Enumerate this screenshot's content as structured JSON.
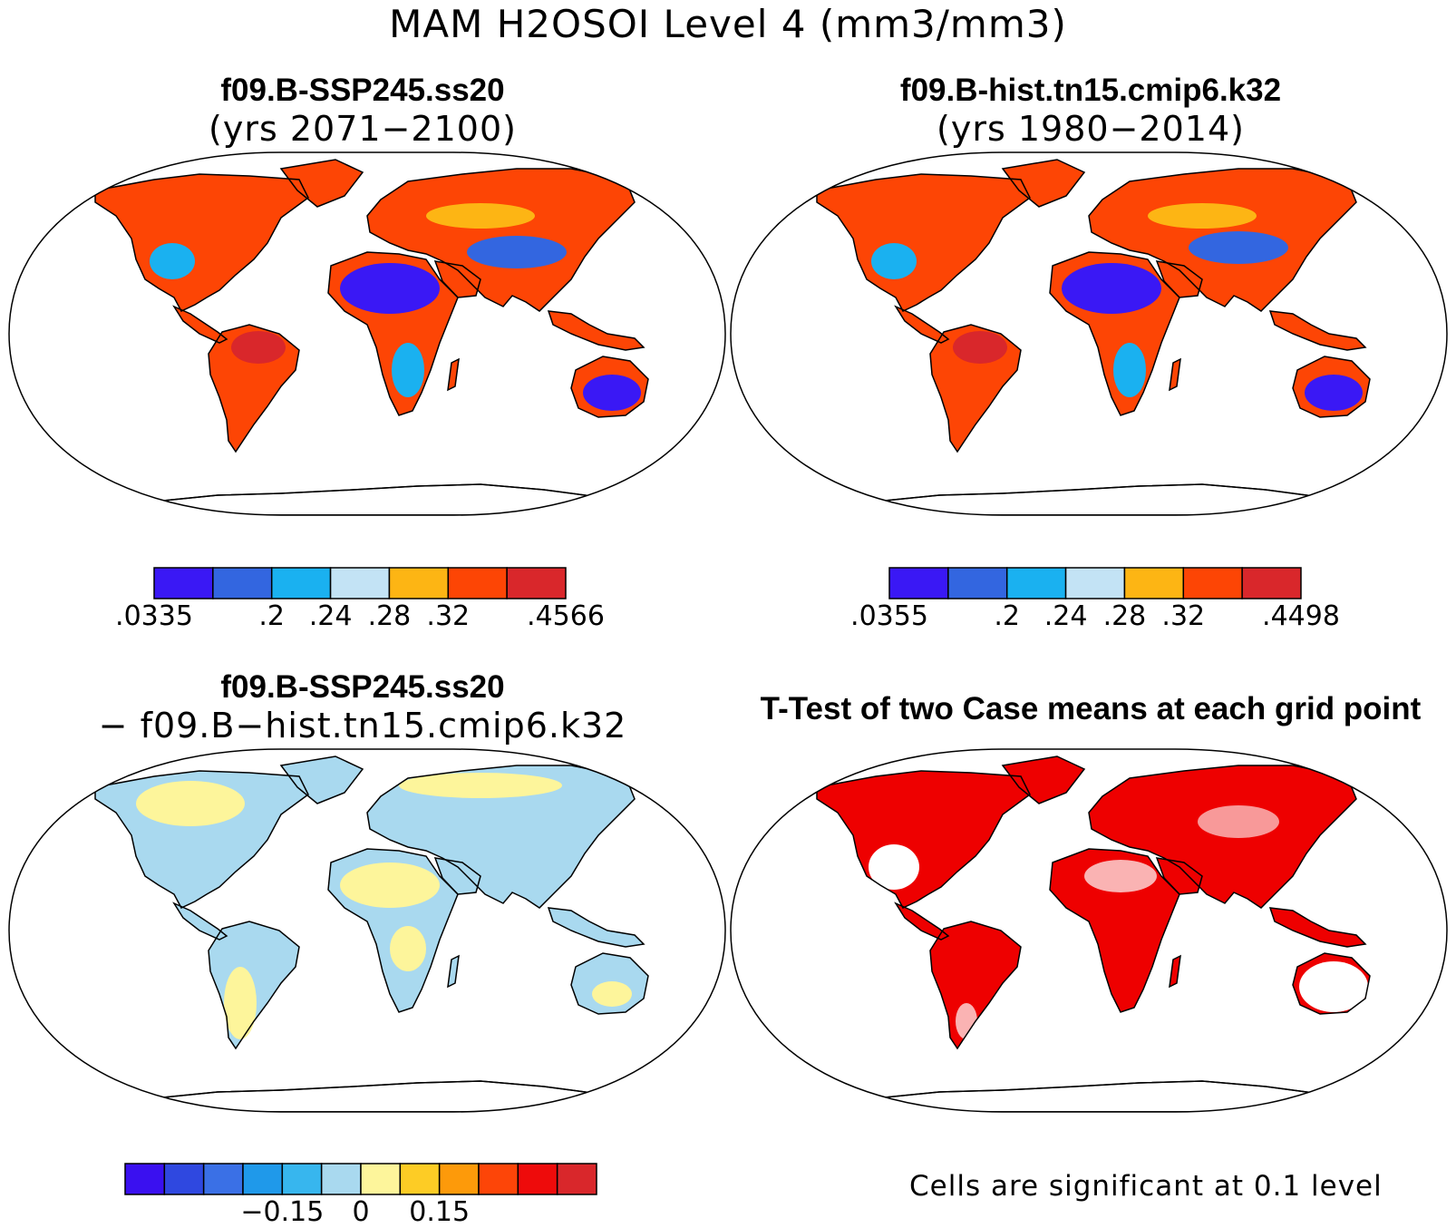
{
  "figure": {
    "title": "MAM H2OSOI Level 4 (mm3/mm3)"
  },
  "panels": [
    {
      "id": "panel-1",
      "title_line1": "f09.B-SSP245.ss20",
      "title_line2": "(yrs 2071−2100)",
      "fill": "scalar"
    },
    {
      "id": "panel-2",
      "title_line1": "f09.B-hist.tn15.cmip6.k32",
      "title_line2": "(yrs 1980−2014)",
      "fill": "scalar"
    },
    {
      "id": "panel-3",
      "title_line1": "f09.B-SSP245.ss20",
      "title_line2": "− f09.B−hist.tn15.cmip6.k32",
      "fill": "difference"
    },
    {
      "id": "panel-4",
      "title_line1": "T-Test of two Case means at each grid point",
      "title_line2": "",
      "fill": "significance",
      "note": "Cells are significant at 0.1 level"
    }
  ],
  "colorbars": [
    {
      "id": "colorbar-1",
      "colors": [
        "#3a18f5",
        "#3366e0",
        "#1ab1f0",
        "#c3e3f5",
        "#fdb514",
        "#fd4505",
        "#d9272b"
      ],
      "labels": [
        ".0335",
        ".2",
        ".24",
        ".28",
        ".32",
        ".4566"
      ],
      "label_boundaries": [
        0,
        2,
        3,
        4,
        5,
        7
      ]
    },
    {
      "id": "colorbar-2",
      "colors": [
        "#3a18f5",
        "#3366e0",
        "#1ab1f0",
        "#c3e3f5",
        "#fdb514",
        "#fd4505",
        "#d9272b"
      ],
      "labels": [
        ".0355",
        ".2",
        ".24",
        ".28",
        ".32",
        ".4498"
      ],
      "label_boundaries": [
        0,
        2,
        3,
        4,
        5,
        7
      ]
    },
    {
      "id": "colorbar-3",
      "colors": [
        "#3a10f0",
        "#2f48e0",
        "#3a70e6",
        "#1f99ea",
        "#37b6ee",
        "#a9d9ef",
        "#fdf59b",
        "#fdcc25",
        "#fd9a0a",
        "#fd4508",
        "#ee0b0b",
        "#d9272b"
      ],
      "labels": [
        "−0.15",
        "0",
        "0.15"
      ],
      "label_boundaries": [
        4,
        6,
        8
      ]
    }
  ],
  "colors": {
    "significance": "#ee0000",
    "coastline": "#000000",
    "diff_positive": "#fdf59b",
    "diff_negative": "#a9d9ef"
  }
}
